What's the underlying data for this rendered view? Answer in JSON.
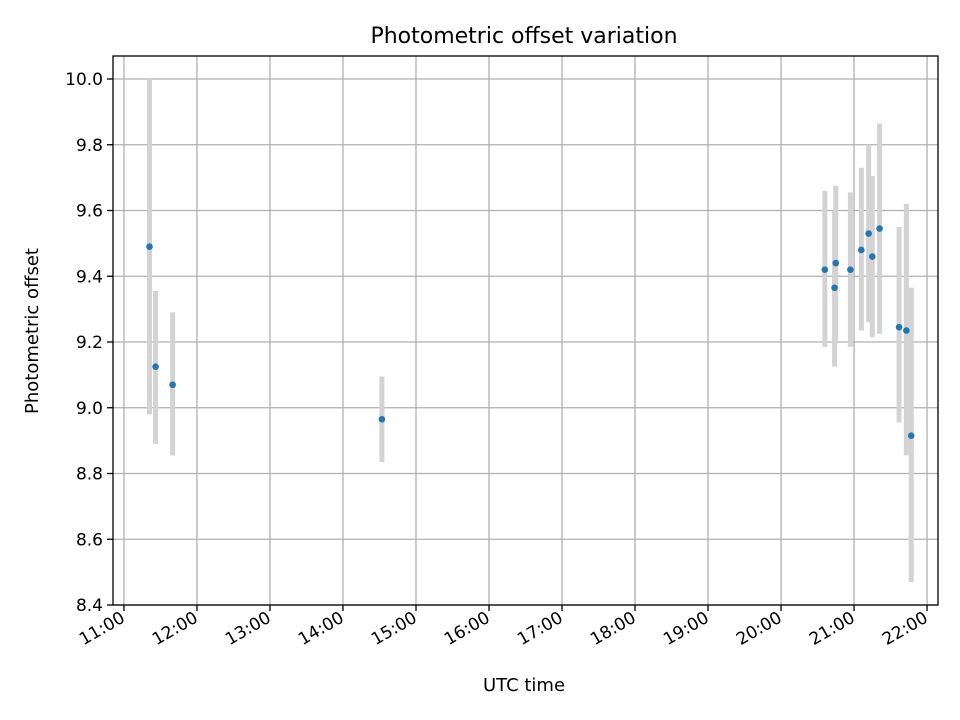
{
  "chart_data": {
    "type": "scatter",
    "title": "Photometric offset variation",
    "xlabel": "UTC time",
    "ylabel": "Photometric offset",
    "xlim": [
      "10:51",
      "22:09"
    ],
    "ylim": [
      8.4,
      10.07
    ],
    "grid": true,
    "x_ticks": [
      "11:00",
      "12:00",
      "13:00",
      "14:00",
      "15:00",
      "16:00",
      "17:00",
      "18:00",
      "19:00",
      "20:00",
      "21:00",
      "22:00"
    ],
    "y_ticks": [
      "8.4",
      "8.6",
      "8.8",
      "9.0",
      "9.2",
      "9.4",
      "9.6",
      "9.8",
      "10.0"
    ],
    "marker_color": "#1f77b4",
    "errorbar_color": "#d3d3d3",
    "points": [
      {
        "x": "11:21",
        "y": 9.49,
        "lo": 8.98,
        "hi": 10.0
      },
      {
        "x": "11:26",
        "y": 9.125,
        "lo": 8.89,
        "hi": 9.355
      },
      {
        "x": "11:40",
        "y": 9.07,
        "lo": 8.855,
        "hi": 9.29
      },
      {
        "x": "14:32",
        "y": 8.965,
        "lo": 8.835,
        "hi": 9.095
      },
      {
        "x": "20:36",
        "y": 9.42,
        "lo": 9.185,
        "hi": 9.66
      },
      {
        "x": "20:44",
        "y": 9.365,
        "lo": 9.125,
        "hi": 9.6
      },
      {
        "x": "20:45",
        "y": 9.44,
        "lo": 9.205,
        "hi": 9.675
      },
      {
        "x": "20:57",
        "y": 9.42,
        "lo": 9.185,
        "hi": 9.655
      },
      {
        "x": "21:06",
        "y": 9.48,
        "lo": 9.235,
        "hi": 9.73
      },
      {
        "x": "21:12",
        "y": 9.53,
        "lo": 9.26,
        "hi": 9.8
      },
      {
        "x": "21:15",
        "y": 9.46,
        "lo": 9.215,
        "hi": 9.705
      },
      {
        "x": "21:21",
        "y": 9.545,
        "lo": 9.225,
        "hi": 9.865
      },
      {
        "x": "21:37",
        "y": 9.245,
        "lo": 8.955,
        "hi": 9.55
      },
      {
        "x": "21:43",
        "y": 9.235,
        "lo": 8.855,
        "hi": 9.62
      },
      {
        "x": "21:47",
        "y": 8.915,
        "lo": 8.47,
        "hi": 9.365
      }
    ]
  }
}
